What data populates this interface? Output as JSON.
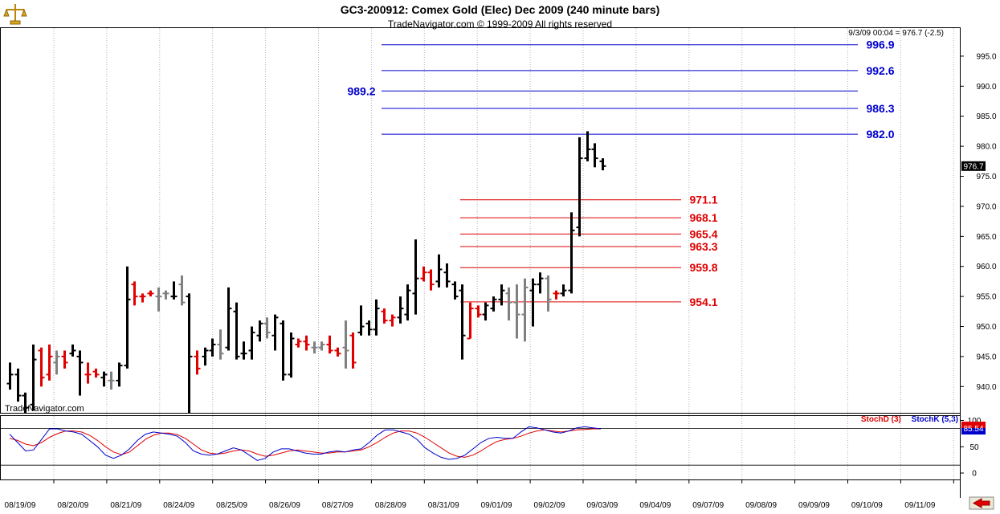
{
  "header": {
    "title": "GC3-200912:  Comex Gold (Elec) Dec 2009  (240 minute bars)",
    "copyright": "TradeNavigator.com © 1999-2009 All rights reserved",
    "last_quote": "9/3/09 00:04 = 976.7 (-2.5)",
    "watermark": "TradeNavigator.com"
  },
  "colors": {
    "up_bar": "#000000",
    "down_bar": "#e00000",
    "neutral_bar": "#808080",
    "resistance": "#0000cc",
    "support": "#e00000",
    "stoch_d": "#e00000",
    "stoch_k": "#0000cc"
  },
  "chart_data": [
    {
      "type": "ohlc",
      "title": "GC3-200912:  Comex Gold (Elec) Dec 2009  (240 minute bars)",
      "y_ticks": [
        "940.0",
        "945.0",
        "950.0",
        "955.0",
        "960.0",
        "965.0",
        "970.0",
        "975.0",
        "980.0",
        "985.0",
        "990.0",
        "995.0"
      ],
      "ylim": [
        935.5,
        999.0
      ],
      "grid": "vertical dotted",
      "categories": [
        "08/19/09",
        "08/20/09",
        "08/21/09",
        "08/24/09",
        "08/25/09",
        "08/26/09",
        "08/27/09",
        "08/28/09",
        "08/31/09",
        "09/01/09",
        "09/02/09",
        "09/03/09",
        "09/04/09",
        "09/07/09",
        "09/08/09",
        "09/09/09",
        "09/10/09",
        "09/11/09"
      ],
      "last_price": "976.7",
      "bars": [
        {
          "o": 940.5,
          "h": 944.0,
          "l": 939.5,
          "c": 942.0,
          "k": "u"
        },
        {
          "o": 942.0,
          "h": 943.0,
          "l": 937.5,
          "c": 938.5,
          "k": "u"
        },
        {
          "o": 938.5,
          "h": 939.0,
          "l": 935.5,
          "c": 936.5,
          "k": "u"
        },
        {
          "o": 937.0,
          "h": 947.0,
          "l": 936.0,
          "c": 944.5,
          "k": "u"
        },
        {
          "o": 946.0,
          "h": 946.5,
          "l": 940.0,
          "c": 941.5,
          "k": "d"
        },
        {
          "o": 942.0,
          "h": 947.0,
          "l": 941.0,
          "c": 945.0,
          "k": "d"
        },
        {
          "o": 944.0,
          "h": 946.0,
          "l": 942.0,
          "c": 945.0,
          "k": "n"
        },
        {
          "o": 945.0,
          "h": 946.0,
          "l": 943.0,
          "c": 944.0,
          "k": "d"
        },
        {
          "o": 945.5,
          "h": 947.0,
          "l": 945.0,
          "c": 946.0,
          "k": "u"
        },
        {
          "o": 945.0,
          "h": 946.0,
          "l": 938.5,
          "c": 944.0,
          "k": "u"
        },
        {
          "o": 942.0,
          "h": 944.0,
          "l": 940.5,
          "c": 942.0,
          "k": "d"
        },
        {
          "o": 942.5,
          "h": 943.0,
          "l": 941.5,
          "c": 942.0,
          "k": "d"
        },
        {
          "o": 941.5,
          "h": 942.5,
          "l": 940.0,
          "c": 942.0,
          "k": "u"
        },
        {
          "o": 941.0,
          "h": 942.5,
          "l": 939.5,
          "c": 941.0,
          "k": "n"
        },
        {
          "o": 941.0,
          "h": 944.0,
          "l": 940.0,
          "c": 943.5,
          "k": "u"
        },
        {
          "o": 943.5,
          "h": 960.0,
          "l": 943.0,
          "c": 954.5,
          "k": "u"
        },
        {
          "o": 957.0,
          "h": 957.5,
          "l": 953.5,
          "c": 955.0,
          "k": "d"
        },
        {
          "o": 955.0,
          "h": 955.5,
          "l": 954.0,
          "c": 955.0,
          "k": "d"
        },
        {
          "o": 955.5,
          "h": 956.0,
          "l": 955.0,
          "c": 955.5,
          "k": "d"
        },
        {
          "o": 955.0,
          "h": 956.5,
          "l": 952.5,
          "c": 955.0,
          "k": "n"
        },
        {
          "o": 955.5,
          "h": 956.0,
          "l": 954.5,
          "c": 955.5,
          "k": "n"
        },
        {
          "o": 955.0,
          "h": 957.5,
          "l": 954.5,
          "c": 955.0,
          "k": "u"
        },
        {
          "o": 957.0,
          "h": 958.5,
          "l": 953.5,
          "c": 954.0,
          "k": "n"
        },
        {
          "o": 955.0,
          "h": 955.5,
          "l": 935.5,
          "c": 945.0,
          "k": "u"
        },
        {
          "o": 945.0,
          "h": 946.0,
          "l": 942.0,
          "c": 943.0,
          "k": "d"
        },
        {
          "o": 945.0,
          "h": 946.5,
          "l": 943.5,
          "c": 946.0,
          "k": "u"
        },
        {
          "o": 946.0,
          "h": 948.0,
          "l": 945.0,
          "c": 947.0,
          "k": "u"
        },
        {
          "o": 947.0,
          "h": 949.5,
          "l": 944.5,
          "c": 945.5,
          "k": "n"
        },
        {
          "o": 946.5,
          "h": 956.5,
          "l": 946.0,
          "c": 953.0,
          "k": "u"
        },
        {
          "o": 952.5,
          "h": 954.0,
          "l": 944.5,
          "c": 945.0,
          "k": "u"
        },
        {
          "o": 945.5,
          "h": 947.5,
          "l": 944.5,
          "c": 945.5,
          "k": "u"
        },
        {
          "o": 946.0,
          "h": 950.0,
          "l": 944.5,
          "c": 949.0,
          "k": "u"
        },
        {
          "o": 948.5,
          "h": 951.0,
          "l": 947.5,
          "c": 950.5,
          "k": "u"
        },
        {
          "o": 950.5,
          "h": 951.5,
          "l": 948.0,
          "c": 949.0,
          "k": "n"
        },
        {
          "o": 948.5,
          "h": 952.0,
          "l": 946.0,
          "c": 951.5,
          "k": "u"
        },
        {
          "o": 950.5,
          "h": 951.0,
          "l": 941.0,
          "c": 942.0,
          "k": "u"
        },
        {
          "o": 942.0,
          "h": 949.0,
          "l": 941.5,
          "c": 948.0,
          "k": "u"
        },
        {
          "o": 947.0,
          "h": 948.0,
          "l": 946.5,
          "c": 947.5,
          "k": "d"
        },
        {
          "o": 947.5,
          "h": 948.5,
          "l": 946.0,
          "c": 947.0,
          "k": "d"
        },
        {
          "o": 946.5,
          "h": 947.5,
          "l": 945.5,
          "c": 946.5,
          "k": "n"
        },
        {
          "o": 946.5,
          "h": 947.5,
          "l": 946.0,
          "c": 947.0,
          "k": "n"
        },
        {
          "o": 947.0,
          "h": 948.5,
          "l": 945.5,
          "c": 946.0,
          "k": "d"
        },
        {
          "o": 946.0,
          "h": 946.5,
          "l": 945.0,
          "c": 945.5,
          "k": "d"
        },
        {
          "o": 946.5,
          "h": 951.0,
          "l": 943.0,
          "c": 946.0,
          "k": "n"
        },
        {
          "o": 948.5,
          "h": 949.0,
          "l": 943.0,
          "c": 944.0,
          "k": "d"
        },
        {
          "o": 949.0,
          "h": 953.5,
          "l": 948.5,
          "c": 950.0,
          "k": "u"
        },
        {
          "o": 950.5,
          "h": 951.0,
          "l": 948.5,
          "c": 949.5,
          "k": "u"
        },
        {
          "o": 949.5,
          "h": 954.5,
          "l": 948.5,
          "c": 953.0,
          "k": "u"
        },
        {
          "o": 952.5,
          "h": 953.0,
          "l": 950.5,
          "c": 951.0,
          "k": "d"
        },
        {
          "o": 951.0,
          "h": 952.0,
          "l": 950.0,
          "c": 951.5,
          "k": "d"
        },
        {
          "o": 951.5,
          "h": 955.0,
          "l": 950.5,
          "c": 953.0,
          "k": "u"
        },
        {
          "o": 952.0,
          "h": 957.0,
          "l": 951.0,
          "c": 956.0,
          "k": "u"
        },
        {
          "o": 955.5,
          "h": 964.5,
          "l": 952.0,
          "c": 958.0,
          "k": "u"
        },
        {
          "o": 958.0,
          "h": 960.0,
          "l": 957.5,
          "c": 959.0,
          "k": "d"
        },
        {
          "o": 959.0,
          "h": 959.5,
          "l": 956.0,
          "c": 957.0,
          "k": "d"
        },
        {
          "o": 957.5,
          "h": 962.0,
          "l": 956.5,
          "c": 959.5,
          "k": "u"
        },
        {
          "o": 959.0,
          "h": 960.5,
          "l": 956.5,
          "c": 957.5,
          "k": "u"
        },
        {
          "o": 957.0,
          "h": 957.5,
          "l": 954.5,
          "c": 955.0,
          "k": "u"
        },
        {
          "o": 956.0,
          "h": 957.0,
          "l": 944.5,
          "c": 948.5,
          "k": "u"
        },
        {
          "o": 948.0,
          "h": 954.0,
          "l": 948.0,
          "c": 953.0,
          "k": "d"
        },
        {
          "o": 953.0,
          "h": 953.5,
          "l": 951.5,
          "c": 952.0,
          "k": "d"
        },
        {
          "o": 952.0,
          "h": 954.0,
          "l": 951.0,
          "c": 953.5,
          "k": "u"
        },
        {
          "o": 953.0,
          "h": 955.0,
          "l": 952.5,
          "c": 954.5,
          "k": "u"
        },
        {
          "o": 954.5,
          "h": 957.0,
          "l": 953.5,
          "c": 956.0,
          "k": "u"
        },
        {
          "o": 955.5,
          "h": 956.5,
          "l": 951.0,
          "c": 954.0,
          "k": "n"
        },
        {
          "o": 954.0,
          "h": 957.0,
          "l": 948.0,
          "c": 952.0,
          "k": "n"
        },
        {
          "o": 952.0,
          "h": 958.0,
          "l": 947.5,
          "c": 956.5,
          "k": "n"
        },
        {
          "o": 956.0,
          "h": 958.0,
          "l": 950.0,
          "c": 957.0,
          "k": "u"
        },
        {
          "o": 957.0,
          "h": 959.0,
          "l": 955.5,
          "c": 958.0,
          "k": "u"
        },
        {
          "o": 958.0,
          "h": 958.5,
          "l": 952.5,
          "c": 954.5,
          "k": "n"
        },
        {
          "o": 955.5,
          "h": 956.0,
          "l": 954.5,
          "c": 955.5,
          "k": "d"
        },
        {
          "o": 955.5,
          "h": 957.0,
          "l": 955.0,
          "c": 956.0,
          "k": "u"
        },
        {
          "o": 956.0,
          "h": 969.0,
          "l": 955.5,
          "c": 966.0,
          "k": "u"
        },
        {
          "o": 966.5,
          "h": 981.5,
          "l": 965.0,
          "c": 978.0,
          "k": "u"
        },
        {
          "o": 978.0,
          "h": 982.5,
          "l": 977.5,
          "c": 979.5,
          "k": "u"
        },
        {
          "o": 979.5,
          "h": 980.5,
          "l": 976.5,
          "c": 978.0,
          "k": "u"
        },
        {
          "o": 977.5,
          "h": 978.0,
          "l": 976.0,
          "c": 976.7,
          "k": "u"
        }
      ],
      "resistance_levels": [
        {
          "value": 996.9,
          "label": "996.9"
        },
        {
          "value": 992.6,
          "label": "992.6"
        },
        {
          "value": 989.2,
          "label": "989.2"
        },
        {
          "value": 986.3,
          "label": "986.3"
        },
        {
          "value": 982.0,
          "label": "982.0"
        }
      ],
      "support_levels": [
        {
          "value": 971.1,
          "label": "971.1"
        },
        {
          "value": 968.1,
          "label": "968.1"
        },
        {
          "value": 965.4,
          "label": "965.4"
        },
        {
          "value": 963.3,
          "label": "963.3"
        },
        {
          "value": 959.8,
          "label": "959.8"
        },
        {
          "value": 954.1,
          "label": "954.1"
        }
      ]
    },
    {
      "type": "line",
      "title": "",
      "ylim": [
        0,
        110
      ],
      "y_ticks": [
        "100",
        "50",
        "0"
      ],
      "reference_lines": [
        85,
        15
      ],
      "series": [
        {
          "name": "StochD (3)",
          "values": [
            66,
            62,
            55,
            52,
            58,
            68,
            75,
            80,
            80,
            78,
            72,
            62,
            50,
            40,
            35,
            40,
            52,
            64,
            72,
            76,
            76,
            73,
            66,
            55,
            44,
            38,
            36,
            38,
            42,
            44,
            42,
            36,
            32,
            34,
            38,
            42,
            44,
            42,
            40,
            38,
            38,
            40,
            40,
            42,
            44,
            50,
            58,
            68,
            76,
            80,
            80,
            76,
            68,
            58,
            48,
            38,
            32,
            30,
            34,
            42,
            52,
            60,
            64,
            66,
            70,
            76,
            80,
            82,
            80,
            78,
            80,
            82,
            83,
            84,
            84
          ]
        },
        {
          "name": "StochK (5,3)",
          "values": [
            74,
            58,
            42,
            44,
            64,
            84,
            84,
            80,
            78,
            74,
            62,
            50,
            34,
            28,
            34,
            46,
            62,
            74,
            78,
            76,
            74,
            70,
            58,
            42,
            36,
            34,
            36,
            42,
            48,
            44,
            34,
            24,
            28,
            40,
            46,
            46,
            42,
            38,
            36,
            36,
            40,
            42,
            40,
            44,
            46,
            58,
            72,
            82,
            82,
            78,
            74,
            64,
            48,
            38,
            30,
            26,
            28,
            34,
            46,
            58,
            66,
            68,
            66,
            66,
            78,
            88,
            86,
            82,
            78,
            76,
            80,
            86,
            88,
            86,
            84
          ]
        }
      ],
      "last_value": "85.54"
    }
  ],
  "stoch_legend": {
    "d_label": "StochD (3)",
    "k_label": "StochK (5,3)"
  }
}
